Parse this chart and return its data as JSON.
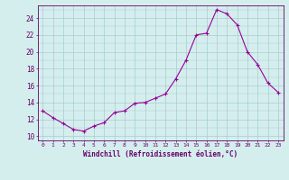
{
  "hours": [
    0,
    1,
    2,
    3,
    4,
    5,
    6,
    7,
    8,
    9,
    10,
    11,
    12,
    13,
    14,
    15,
    16,
    17,
    18,
    19,
    20,
    21,
    22,
    23
  ],
  "windchill": [
    13.0,
    12.2,
    11.5,
    10.8,
    10.6,
    11.2,
    11.6,
    12.8,
    13.0,
    13.9,
    14.0,
    14.5,
    15.0,
    16.8,
    19.0,
    22.0,
    22.2,
    25.0,
    24.5,
    23.2,
    20.0,
    18.5,
    16.3,
    15.2
  ],
  "line_color": "#990099",
  "marker_color": "#990099",
  "bg_color": "#d4eeee",
  "grid_color": "#aacccc",
  "tick_color": "#660066",
  "xlabel": "Windchill (Refroidissement éolien,°C)",
  "ylabel_ticks": [
    10,
    12,
    14,
    16,
    18,
    20,
    22,
    24
  ],
  "ylim": [
    9.5,
    25.5
  ],
  "xlim": [
    -0.5,
    23.5
  ]
}
